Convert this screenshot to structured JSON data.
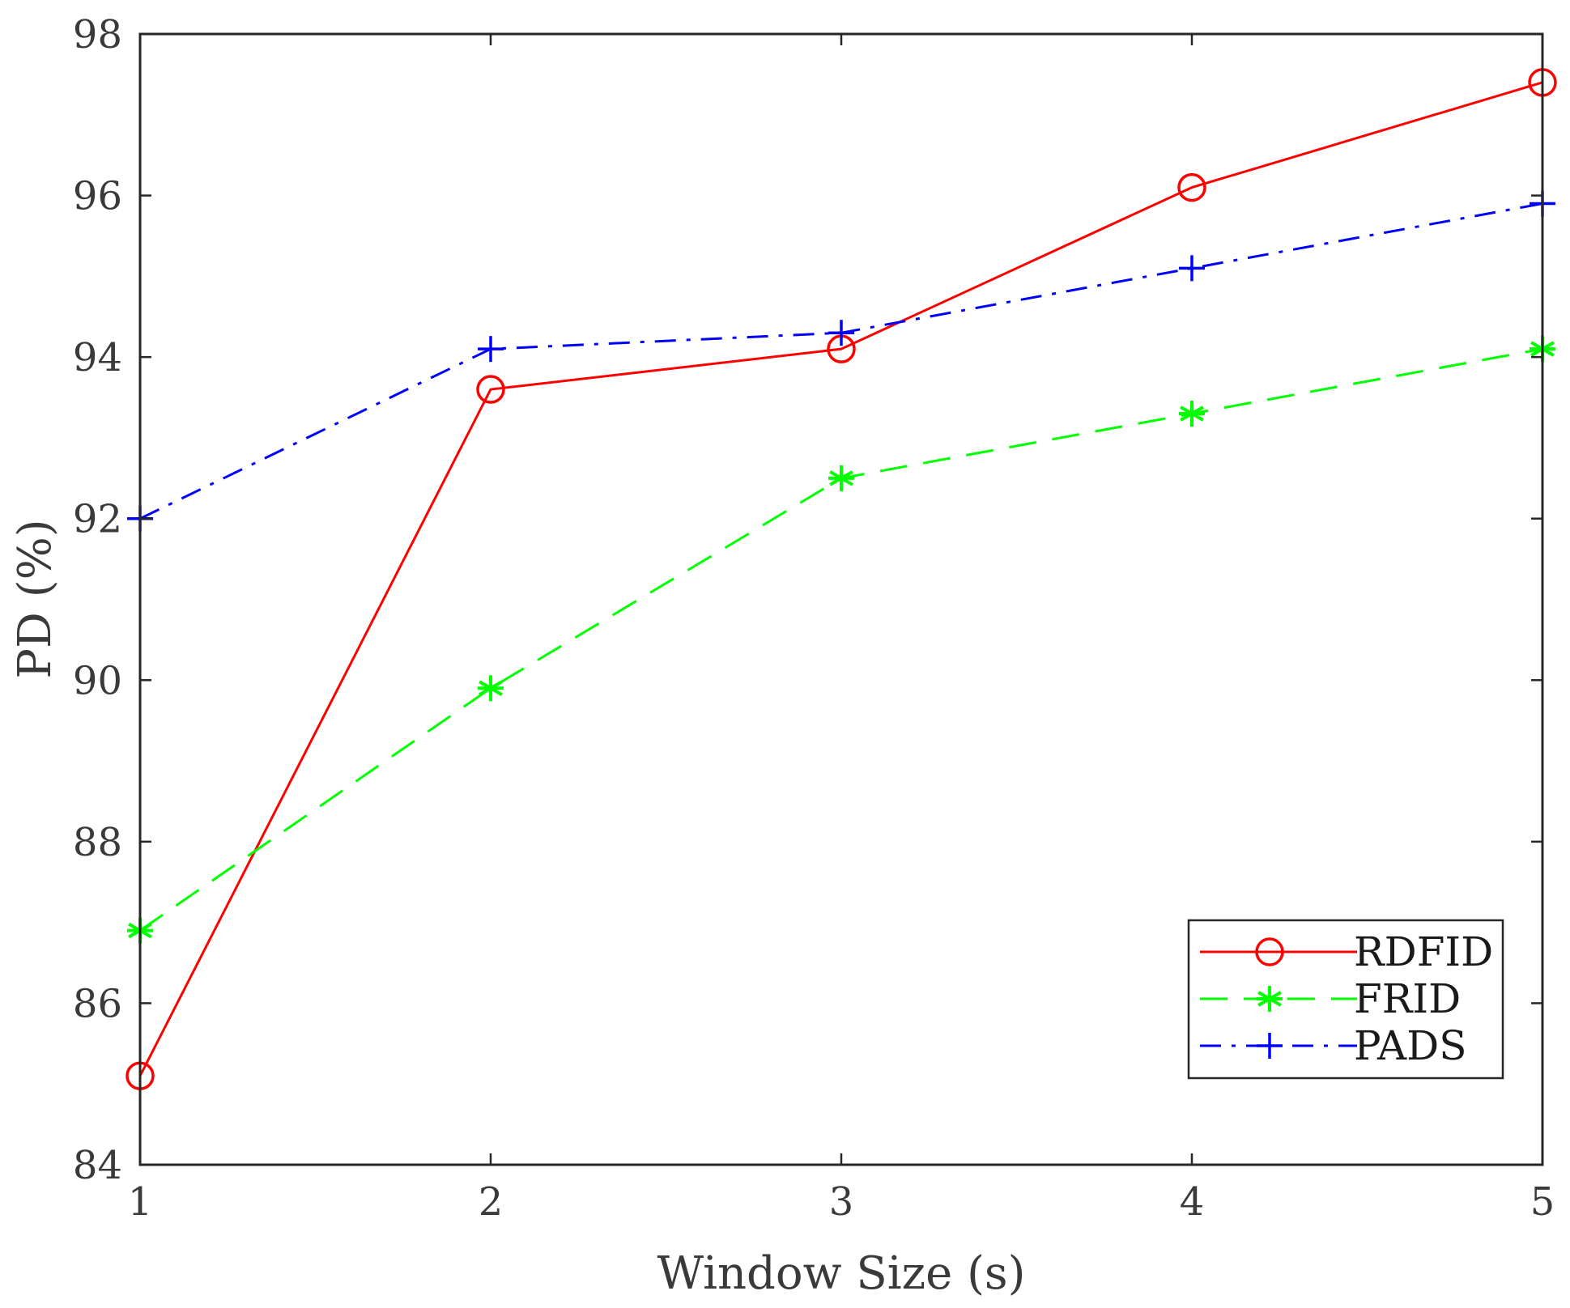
{
  "chart_data": {
    "type": "line",
    "title": "",
    "xlabel": "Window Size (s)",
    "ylabel": "PD (%)",
    "x": [
      1,
      2,
      3,
      4,
      5
    ],
    "xlim": [
      1,
      5
    ],
    "ylim": [
      84,
      98
    ],
    "xticks": [
      "1",
      "2",
      "3",
      "4",
      "5"
    ],
    "yticks": [
      "84",
      "86",
      "88",
      "90",
      "92",
      "94",
      "96",
      "98"
    ],
    "grid": false,
    "legend_position": "lower-right",
    "series": [
      {
        "name": "RDFID",
        "values": [
          85.1,
          93.6,
          94.1,
          96.1,
          97.4
        ],
        "color": "#ff0000",
        "line_style": "solid",
        "marker": "circle"
      },
      {
        "name": "FRID",
        "values": [
          86.9,
          89.9,
          92.5,
          93.3,
          94.1
        ],
        "color": "#00ff00",
        "line_style": "dashed",
        "marker": "asterisk"
      },
      {
        "name": "PADS",
        "values": [
          92.0,
          94.1,
          94.3,
          95.1,
          95.9
        ],
        "color": "#0000ff",
        "line_style": "dash-dot",
        "marker": "plus"
      }
    ]
  }
}
